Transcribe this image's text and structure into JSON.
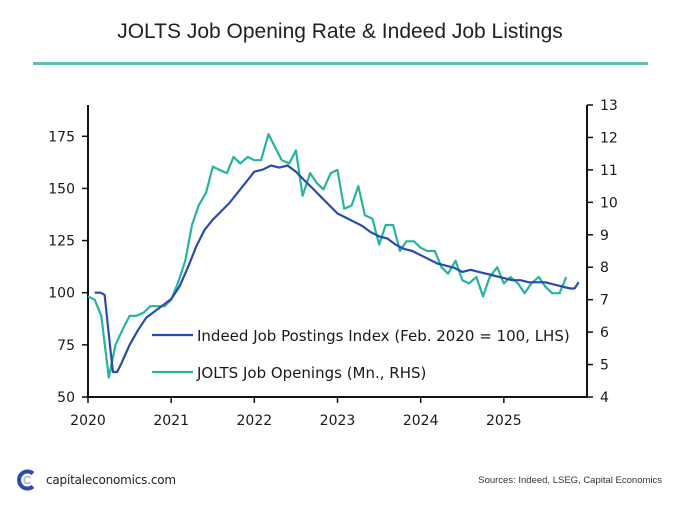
{
  "chart_data": {
    "type": "line",
    "title": "JOLTS Job Opening Rate & Indeed Job Listings",
    "xlabel": "",
    "ylabel_left": "",
    "ylabel_right": "",
    "x_ticks": [
      "2020",
      "2021",
      "2022",
      "2023",
      "2024",
      "2025"
    ],
    "x_tick_values": [
      2020,
      2021,
      2022,
      2023,
      2024,
      2025
    ],
    "xlim": [
      2020,
      2026
    ],
    "ylim_left": [
      50,
      190
    ],
    "ylim_right": [
      4,
      13
    ],
    "y_ticks_left": [
      "50",
      "75",
      "100",
      "125",
      "150",
      "175"
    ],
    "y_tick_values_left": [
      50,
      75,
      100,
      125,
      150,
      175
    ],
    "y_ticks_right": [
      "4",
      "5",
      "6",
      "7",
      "8",
      "9",
      "10",
      "11",
      "12",
      "13"
    ],
    "y_tick_values_right": [
      4,
      5,
      6,
      7,
      8,
      9,
      10,
      11,
      12,
      13
    ],
    "grid": false,
    "legend_position": "bottom-center",
    "series": [
      {
        "name": "Indeed Job Postings Index (Feb. 2020 = 100, LHS)",
        "axis": "left",
        "color": "#2a4bb0",
        "x": [
          2020.08,
          2020.15,
          2020.2,
          2020.25,
          2020.3,
          2020.35,
          2020.4,
          2020.5,
          2020.6,
          2020.7,
          2020.8,
          2020.9,
          2021.0,
          2021.1,
          2021.2,
          2021.3,
          2021.4,
          2021.5,
          2021.6,
          2021.7,
          2021.8,
          2021.9,
          2022.0,
          2022.1,
          2022.2,
          2022.3,
          2022.4,
          2022.5,
          2022.6,
          2022.7,
          2022.8,
          2022.9,
          2023.0,
          2023.1,
          2023.2,
          2023.3,
          2023.4,
          2023.5,
          2023.6,
          2023.7,
          2023.8,
          2023.9,
          2024.0,
          2024.1,
          2024.2,
          2024.3,
          2024.4,
          2024.5,
          2024.6,
          2024.7,
          2024.8,
          2024.9,
          2025.0,
          2025.1,
          2025.2,
          2025.3,
          2025.4,
          2025.5,
          2025.6,
          2025.7,
          2025.8,
          2025.85,
          2025.9
        ],
        "y": [
          100,
          100,
          99,
          80,
          62,
          62,
          66,
          75,
          82,
          88,
          91,
          94,
          97,
          103,
          112,
          122,
          130,
          135,
          139,
          143,
          148,
          153,
          158,
          159,
          161,
          160,
          161,
          158,
          154,
          150,
          146,
          142,
          138,
          136,
          134,
          132,
          129,
          127,
          126,
          123,
          121,
          120,
          118,
          116,
          114,
          113,
          112,
          110,
          111,
          110,
          109,
          108,
          107,
          106,
          106,
          105,
          105,
          105,
          104,
          103,
          102,
          102,
          105
        ]
      },
      {
        "name": "JOLTS Job Openings (Mn., RHS)",
        "axis": "right",
        "color": "#26b3a0",
        "x": [
          2020.0,
          2020.08,
          2020.16,
          2020.25,
          2020.33,
          2020.42,
          2020.5,
          2020.58,
          2020.67,
          2020.75,
          2020.83,
          2020.92,
          2021.0,
          2021.08,
          2021.17,
          2021.25,
          2021.33,
          2021.42,
          2021.5,
          2021.58,
          2021.67,
          2021.75,
          2021.83,
          2021.92,
          2022.0,
          2022.08,
          2022.17,
          2022.25,
          2022.33,
          2022.42,
          2022.5,
          2022.58,
          2022.67,
          2022.75,
          2022.83,
          2022.92,
          2023.0,
          2023.08,
          2023.17,
          2023.25,
          2023.33,
          2023.42,
          2023.5,
          2023.58,
          2023.67,
          2023.75,
          2023.83,
          2023.92,
          2024.0,
          2024.08,
          2024.17,
          2024.25,
          2024.33,
          2024.42,
          2024.5,
          2024.58,
          2024.67,
          2024.75,
          2024.83,
          2024.92,
          2025.0,
          2025.08,
          2025.17,
          2025.25,
          2025.33,
          2025.42,
          2025.5,
          2025.58,
          2025.67,
          2025.75
        ],
        "y": [
          7.1,
          7.0,
          6.5,
          4.6,
          5.6,
          6.1,
          6.5,
          6.5,
          6.6,
          6.8,
          6.8,
          6.8,
          7.0,
          7.5,
          8.2,
          9.3,
          9.9,
          10.3,
          11.1,
          11.0,
          10.9,
          11.4,
          11.2,
          11.4,
          11.3,
          11.3,
          12.1,
          11.7,
          11.3,
          11.2,
          11.6,
          10.2,
          10.9,
          10.6,
          10.4,
          10.9,
          11.0,
          9.8,
          9.9,
          10.5,
          9.6,
          9.5,
          8.7,
          9.3,
          9.3,
          8.5,
          8.8,
          8.8,
          8.6,
          8.5,
          8.5,
          8.0,
          7.8,
          8.2,
          7.6,
          7.5,
          7.7,
          7.1,
          7.7,
          8.0,
          7.5,
          7.7,
          7.5,
          7.2,
          7.5,
          7.7,
          7.4,
          7.2,
          7.2,
          7.7
        ]
      }
    ]
  },
  "footer": {
    "site": "capitaleconomics.com",
    "sources": "Sources: Indeed, LSEG, Capital Economics"
  }
}
